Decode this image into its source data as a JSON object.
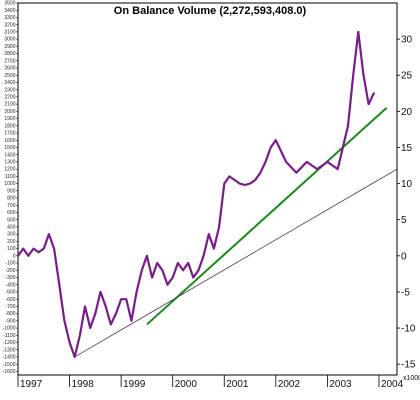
{
  "chart_data": {
    "type": "line",
    "title": "On Balance Volume (2,272,593,408.0)",
    "xlabel": "",
    "ylabel": "",
    "x_ticks": [
      "1997",
      "1998",
      "1999",
      "2000",
      "2001",
      "2002",
      "2003",
      "2004"
    ],
    "x_range": [
      1997.0,
      2004.35
    ],
    "left_axis": {
      "ylim": [
        -1650,
        3500
      ],
      "ticks": [
        3500,
        3400,
        3300,
        3200,
        3100,
        3000,
        2900,
        2800,
        2700,
        2600,
        2500,
        2400,
        2300,
        2200,
        2100,
        2000,
        1900,
        1800,
        1700,
        1600,
        1500,
        1400,
        1300,
        1200,
        1100,
        1000,
        900,
        800,
        700,
        600,
        500,
        400,
        300,
        200,
        100,
        0,
        -100,
        -200,
        -300,
        -400,
        -500,
        -600,
        -700,
        -800,
        -900,
        -1000,
        -1100,
        -1200,
        -1300,
        -1400,
        -1500,
        -1600
      ]
    },
    "right_axis": {
      "ylim": [
        -16.5,
        35
      ],
      "ticks": [
        30,
        25,
        20,
        15,
        10,
        5,
        0,
        -5,
        -10,
        -15
      ],
      "unit_label": "x1000"
    },
    "grid": false,
    "series": [
      {
        "color": "#7b1a8c",
        "x": [
          1997.0,
          1997.1,
          1997.2,
          1997.3,
          1997.4,
          1997.5,
          1997.6,
          1997.7,
          1997.8,
          1997.9,
          1998.0,
          1998.1,
          1998.2,
          1998.3,
          1998.4,
          1998.5,
          1998.6,
          1998.7,
          1998.8,
          1998.9,
          1999.0,
          1999.1,
          1999.2,
          1999.3,
          1999.4,
          1999.5,
          1999.6,
          1999.7,
          1999.8,
          1999.9,
          2000.0,
          2000.1,
          2000.2,
          2000.3,
          2000.4,
          2000.5,
          2000.6,
          2000.7,
          2000.8,
          2000.9,
          2001.0,
          2001.1,
          2001.2,
          2001.3,
          2001.4,
          2001.5,
          2001.6,
          2001.7,
          2001.8,
          2001.9,
          2002.0,
          2002.2,
          2002.4,
          2002.6,
          2002.8,
          2003.0,
          2003.2,
          2003.4,
          2003.5,
          2003.6,
          2003.7,
          2003.8,
          2003.9
        ],
        "y": [
          0.0,
          1.0,
          0.0,
          1.0,
          0.5,
          1.0,
          3.0,
          1.0,
          -4.0,
          -9.0,
          -12.0,
          -14.0,
          -11.0,
          -7.0,
          -10.0,
          -8.0,
          -5.0,
          -7.0,
          -9.5,
          -8.0,
          -6.0,
          -6.0,
          -9.0,
          -5.0,
          -2.0,
          0.0,
          -3.0,
          -1.0,
          -2.0,
          -4.0,
          -3.0,
          -1.0,
          -2.0,
          -1.0,
          -3.0,
          -2.0,
          0.0,
          3.0,
          1.0,
          4.0,
          10.0,
          11.0,
          10.5,
          10.0,
          9.8,
          10.0,
          10.5,
          11.5,
          13.0,
          15.0,
          16.0,
          13.0,
          11.5,
          13.0,
          12.0,
          13.0,
          12.0,
          18.0,
          25.0,
          31.0,
          25.0,
          21.0,
          22.5
        ]
      }
    ],
    "trendlines": [
      {
        "color": "#1a8a1a",
        "from": [
          1999.5,
          -9.5
        ],
        "to": [
          2004.15,
          20.5
        ]
      },
      {
        "color": "#444444",
        "from": [
          1998.1,
          -14.0
        ],
        "to": [
          2004.35,
          12.0
        ]
      }
    ]
  }
}
